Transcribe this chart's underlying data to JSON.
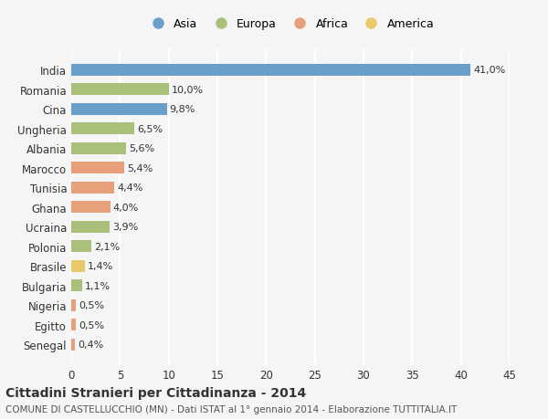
{
  "countries": [
    "India",
    "Romania",
    "Cina",
    "Ungheria",
    "Albania",
    "Marocco",
    "Tunisia",
    "Ghana",
    "Ucraina",
    "Polonia",
    "Brasile",
    "Bulgaria",
    "Nigeria",
    "Egitto",
    "Senegal"
  ],
  "values": [
    41.0,
    10.0,
    9.8,
    6.5,
    5.6,
    5.4,
    4.4,
    4.0,
    3.9,
    2.1,
    1.4,
    1.1,
    0.5,
    0.5,
    0.4
  ],
  "labels": [
    "41,0%",
    "10,0%",
    "9,8%",
    "6,5%",
    "5,6%",
    "5,4%",
    "4,4%",
    "4,0%",
    "3,9%",
    "2,1%",
    "1,4%",
    "1,1%",
    "0,5%",
    "0,5%",
    "0,4%"
  ],
  "continents": [
    "Asia",
    "Europa",
    "Asia",
    "Europa",
    "Europa",
    "Africa",
    "Africa",
    "Africa",
    "Europa",
    "Europa",
    "America",
    "Europa",
    "Africa",
    "Africa",
    "Africa"
  ],
  "continent_colors": {
    "Asia": "#6a9fca",
    "Europa": "#a8c07a",
    "Africa": "#e8a07a",
    "America": "#e8ca6a"
  },
  "legend_order": [
    "Asia",
    "Europa",
    "Africa",
    "America"
  ],
  "xlim": [
    0,
    45
  ],
  "xticks": [
    0,
    5,
    10,
    15,
    20,
    25,
    30,
    35,
    40,
    45
  ],
  "title": "Cittadini Stranieri per Cittadinanza - 2014",
  "subtitle": "COMUNE DI CASTELLUCCHIO (MN) - Dati ISTAT al 1° gennaio 2014 - Elaborazione TUTTITALIA.IT",
  "background_color": "#f5f5f5",
  "grid_color": "#ffffff",
  "bar_height": 0.6
}
